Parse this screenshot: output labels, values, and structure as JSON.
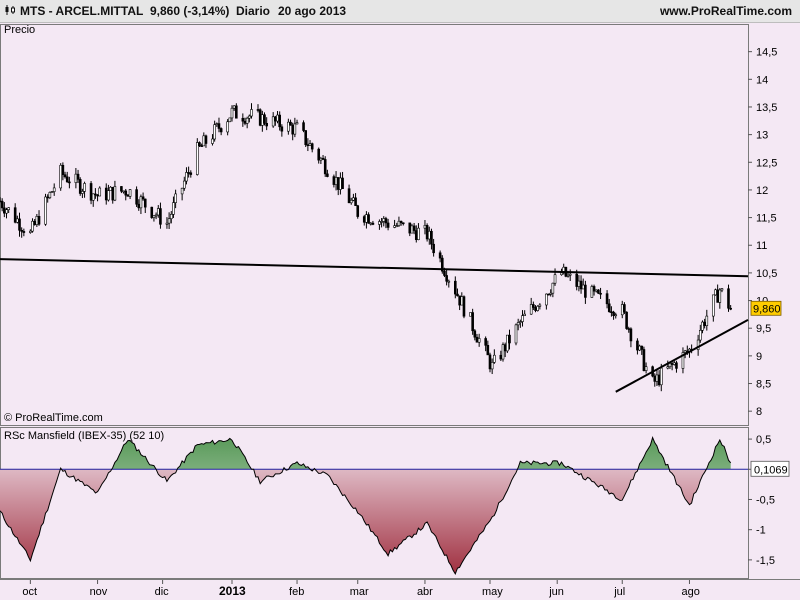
{
  "header": {
    "instrument": "MTS - ARCEL.MITTAL",
    "last_change": "9,860 (-3,14%)",
    "period": "Diario",
    "date": "20 ago 2013",
    "site": "www.ProRealTime.com"
  },
  "colors": {
    "background": "#f4e8f4",
    "candle_body_up": "#ffffff",
    "candle_body_down": "#000000",
    "price_tag_bg": "#ffcc00",
    "rsc_positive_fill": "#5a9a5a",
    "rsc_negative_fill": "#a03040",
    "zero_line": "#2020a0"
  },
  "chart_data": [
    {
      "type": "candlestick",
      "title": "Precio",
      "copyright": "© ProRealTime.com",
      "ylim": [
        7.75,
        15.0
      ],
      "yticks": [
        "8",
        "8,5",
        "9",
        "9,5",
        "10",
        "10,5",
        "11",
        "11,5",
        "12",
        "12,5",
        "13",
        "13,5",
        "14",
        "14,5"
      ],
      "last_price_label": "9,860",
      "last_price": 9.86,
      "xlabels": [
        "oct",
        "nov",
        "dic",
        "2013",
        "feb",
        "mar",
        "abr",
        "may",
        "jun",
        "jul",
        "ago"
      ],
      "x_dates": [
        "2012-09-17",
        "2012-10-01",
        "2012-10-15",
        "2012-11-01",
        "2012-11-15",
        "2012-12-03",
        "2012-12-17",
        "2013-01-02",
        "2013-01-15",
        "2013-02-01",
        "2013-02-15",
        "2013-03-01",
        "2013-03-15",
        "2013-04-02",
        "2013-04-15",
        "2013-05-02",
        "2013-05-15",
        "2013-06-03",
        "2013-06-17",
        "2013-07-01",
        "2013-07-15",
        "2013-08-01",
        "2013-08-15",
        "2013-08-20"
      ],
      "close_path": [
        11.8,
        11.2,
        12.3,
        11.9,
        12.0,
        11.4,
        12.7,
        13.4,
        13.3,
        13.1,
        12.4,
        11.6,
        11.4,
        11.2,
        10.2,
        8.8,
        9.6,
        10.5,
        10.1,
        9.8,
        8.5,
        9.1,
        10.2,
        9.86
      ],
      "trendlines": [
        {
          "name": "resistance",
          "from": {
            "x": "2012-09-17",
            "y": 10.75
          },
          "to": {
            "x": "2013-08-28",
            "y": 10.44
          }
        },
        {
          "name": "support",
          "from": {
            "x": "2013-06-28",
            "y": 8.35
          },
          "to": {
            "x": "2013-08-28",
            "y": 9.65
          }
        }
      ]
    },
    {
      "type": "area",
      "title": "RSc Mansfield (IBEX-35) (52 10)",
      "ylim": [
        -1.8,
        0.7
      ],
      "yticks": [
        "-1,5",
        "-1",
        "-0,5",
        "0",
        "0,5"
      ],
      "last_value_label": "0,1069",
      "last_value": 0.1069,
      "x_dates": [
        "2012-09-17",
        "2012-10-01",
        "2012-10-15",
        "2012-11-01",
        "2012-11-15",
        "2012-12-03",
        "2012-12-17",
        "2013-01-02",
        "2013-01-15",
        "2013-02-01",
        "2013-02-15",
        "2013-03-01",
        "2013-03-15",
        "2013-04-02",
        "2013-04-15",
        "2013-05-02",
        "2013-05-15",
        "2013-06-03",
        "2013-06-17",
        "2013-07-01",
        "2013-07-15",
        "2013-08-01",
        "2013-08-15",
        "2013-08-20"
      ],
      "values": [
        -0.7,
        -1.5,
        0.0,
        -0.4,
        0.5,
        -0.2,
        0.4,
        0.5,
        -0.2,
        0.1,
        -0.1,
        -0.7,
        -1.4,
        -0.9,
        -1.7,
        -0.8,
        0.1,
        0.1,
        -0.2,
        -0.5,
        0.5,
        -0.6,
        0.5,
        0.1
      ]
    }
  ]
}
